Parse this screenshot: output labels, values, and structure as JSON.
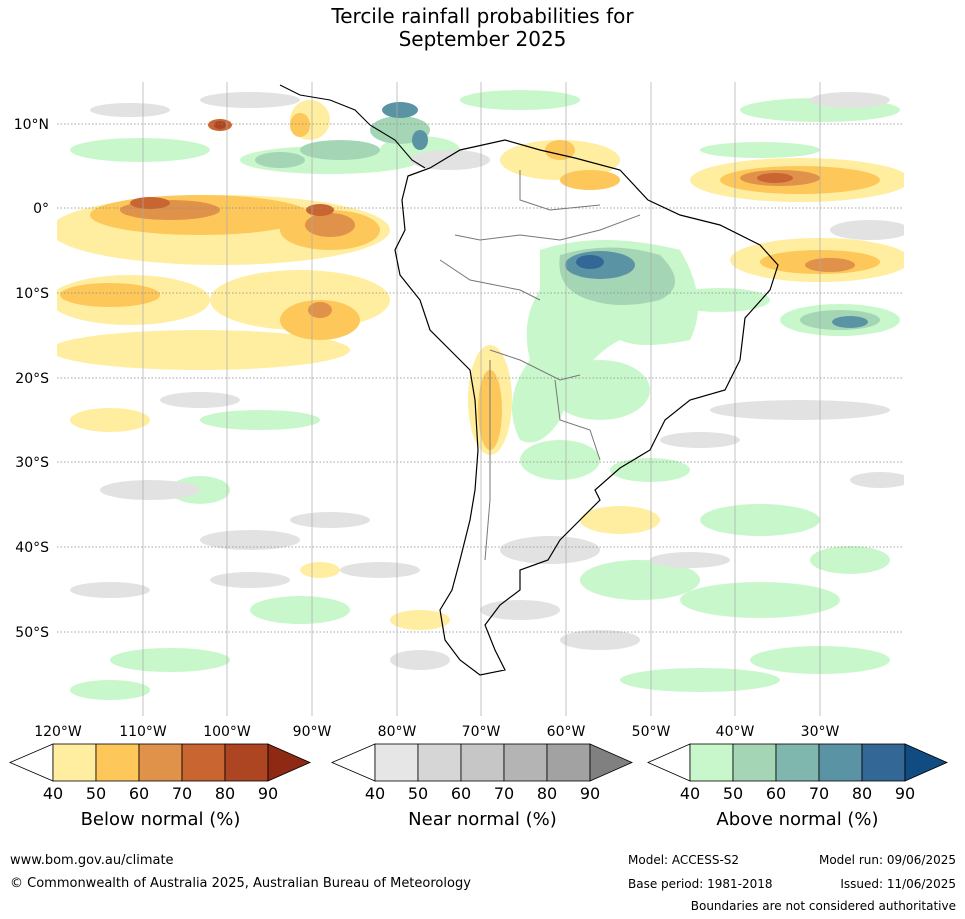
{
  "title": {
    "line1": "Tercile rainfall probabilities for",
    "line2": "September 2025"
  },
  "map": {
    "lat_labels": [
      "10°N",
      "0°",
      "10°S",
      "20°S",
      "30°S",
      "40°S",
      "50°S"
    ],
    "lon_labels": [
      "120°W",
      "110°W",
      "100°W",
      "90°W",
      "80°W",
      "70°W",
      "60°W",
      "50°W",
      "40°W",
      "30°W"
    ]
  },
  "colorbars": [
    {
      "title": "Below normal (%)",
      "ticks": [
        "40",
        "50",
        "60",
        "70",
        "80",
        "90"
      ],
      "colors": [
        "#ffeea0",
        "#fdc75a",
        "#e0924a",
        "#c96530",
        "#ad4522",
        "#8e2a14"
      ]
    },
    {
      "title": "Near normal (%)",
      "ticks": [
        "40",
        "50",
        "60",
        "70",
        "80",
        "90"
      ],
      "colors": [
        "#e6e6e6",
        "#d6d6d6",
        "#c6c6c6",
        "#b4b4b4",
        "#a2a2a2",
        "#808080"
      ]
    },
    {
      "title": "Above normal (%)",
      "ticks": [
        "40",
        "50",
        "60",
        "70",
        "80",
        "90"
      ],
      "colors": [
        "#c8f7cb",
        "#a4d6b6",
        "#7fb6ae",
        "#5a94a4",
        "#336796",
        "#104b82"
      ]
    }
  ],
  "footer": {
    "website": "www.bom.gov.au/climate",
    "copyright": "© Commonwealth of Australia 2025, Australian Bureau of Meteorology",
    "model": "Model: ACCESS-S2",
    "base_period": "Base period: 1981-2018",
    "model_run": "Model run: 09/06/2025",
    "issued": "Issued: 11/06/2025",
    "disclaimer": "Boundaries are not considered authoritative"
  }
}
